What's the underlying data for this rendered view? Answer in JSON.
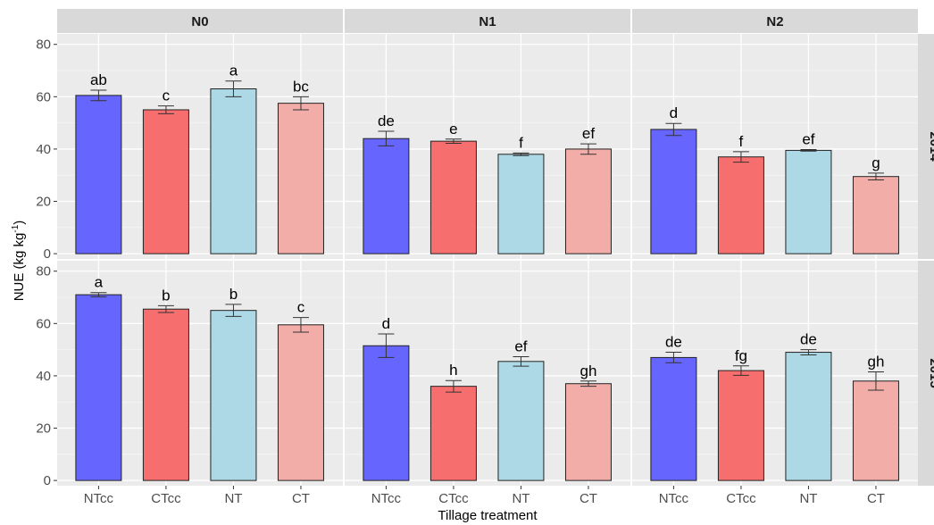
{
  "chart_data": {
    "type": "bar",
    "xlabel": "Tillage treatment",
    "ylabel_main": "NUE (kg kg",
    "ylabel_sup": "-1",
    "ylabel_close": ")",
    "ylim": [
      -2,
      84
    ],
    "yticks": [
      0,
      20,
      40,
      60,
      80
    ],
    "categories": [
      "NTcc",
      "CTcc",
      "NT",
      "CT"
    ],
    "bar_colors": [
      "#6666ff",
      "#f76e6e",
      "#add8e6",
      "#f2ada8"
    ],
    "grid": true,
    "columns": [
      "N0",
      "N1",
      "N2"
    ],
    "rows": [
      "2014",
      "2015"
    ],
    "panels": [
      {
        "row": "2014",
        "col": "N0",
        "values": [
          60.5,
          55.0,
          63.0,
          57.5
        ],
        "errors": [
          2.0,
          1.5,
          3.0,
          2.5
        ],
        "letters": [
          "ab",
          "c",
          "a",
          "bc"
        ]
      },
      {
        "row": "2014",
        "col": "N1",
        "values": [
          44.0,
          43.0,
          38.0,
          40.0
        ],
        "errors": [
          2.8,
          0.8,
          0.5,
          2.0
        ],
        "letters": [
          "de",
          "e",
          "f",
          "ef"
        ]
      },
      {
        "row": "2014",
        "col": "N2",
        "values": [
          47.5,
          37.0,
          39.5,
          29.5
        ],
        "errors": [
          2.3,
          2.0,
          0.3,
          1.3
        ],
        "letters": [
          "d",
          "f",
          "ef",
          "g"
        ]
      },
      {
        "row": "2015",
        "col": "N0",
        "values": [
          71.0,
          65.5,
          65.0,
          59.5
        ],
        "errors": [
          0.8,
          1.3,
          2.3,
          2.8
        ],
        "letters": [
          "a",
          "b",
          "b",
          "c"
        ]
      },
      {
        "row": "2015",
        "col": "N1",
        "values": [
          51.5,
          36.0,
          45.5,
          37.0
        ],
        "errors": [
          4.5,
          2.2,
          1.8,
          1.0
        ],
        "letters": [
          "d",
          "h",
          "ef",
          "gh"
        ]
      },
      {
        "row": "2015",
        "col": "N2",
        "values": [
          47.0,
          42.0,
          49.0,
          38.0
        ],
        "errors": [
          2.0,
          1.8,
          1.0,
          3.5
        ],
        "letters": [
          "de",
          "fg",
          "de",
          "gh"
        ]
      }
    ]
  }
}
